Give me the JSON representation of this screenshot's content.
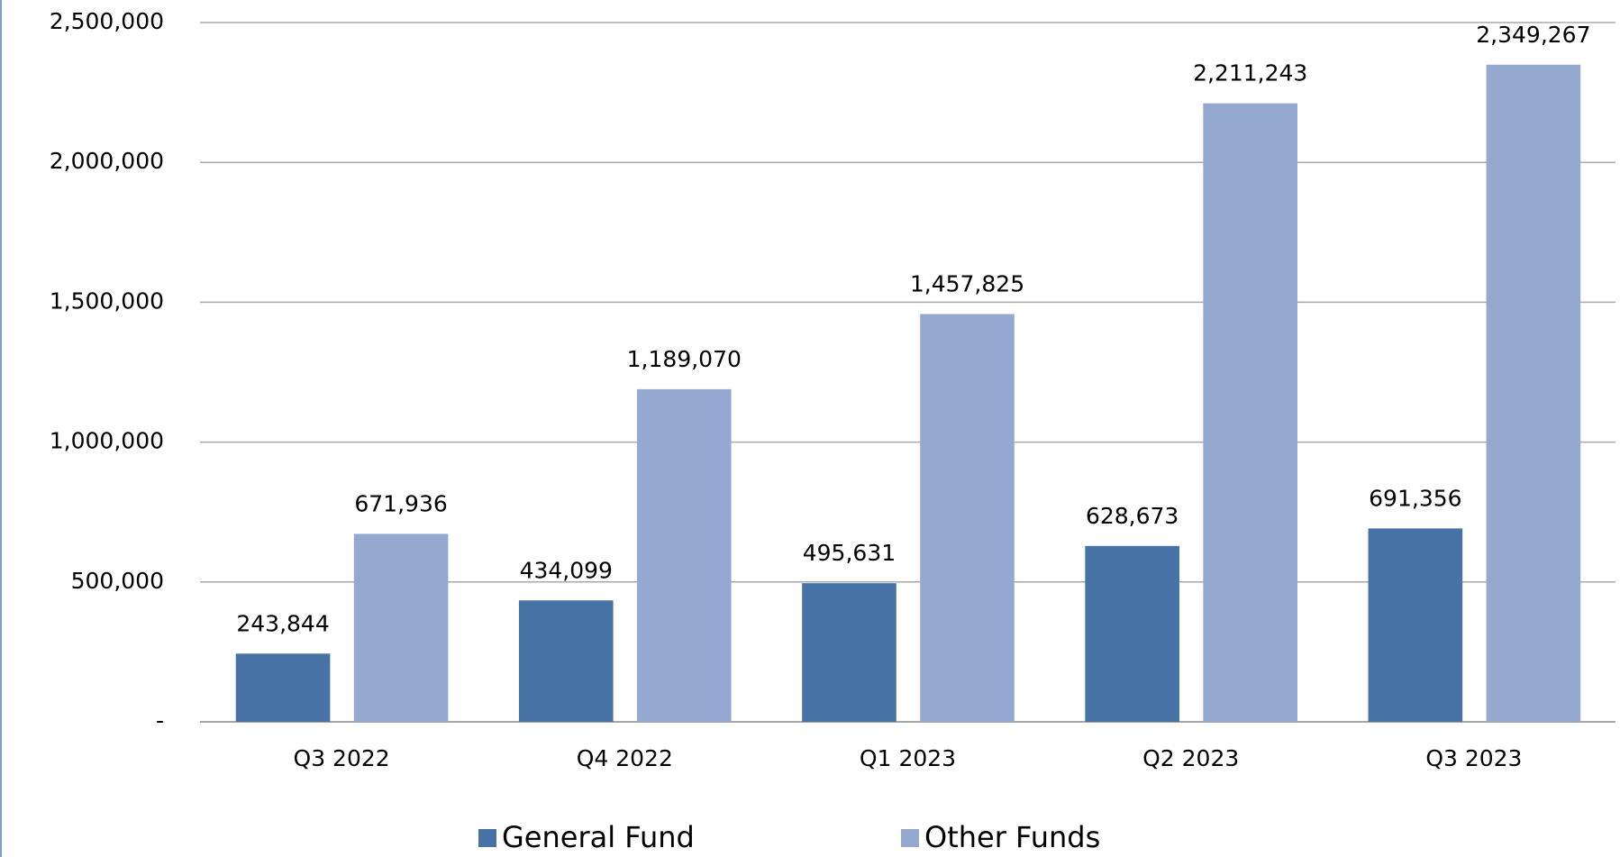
{
  "chart_data": {
    "type": "bar",
    "categories": [
      "Q3 2022",
      "Q4 2022",
      "Q1 2023",
      "Q2 2023",
      "Q3 2023"
    ],
    "series": [
      {
        "name": "General Fund",
        "color": "#4672a6",
        "values": [
          243844,
          434099,
          495631,
          628673,
          691356
        ],
        "value_labels": [
          "243,844",
          "434,099",
          "495,631",
          "628,673",
          "691,356"
        ]
      },
      {
        "name": "Other Funds",
        "color": "#95a9d0",
        "values": [
          671936,
          1189070,
          1457825,
          2211243,
          2349267
        ],
        "value_labels": [
          "671,936",
          "1,189,070",
          "1,457,825",
          "2,211,243",
          "2,349,267"
        ]
      }
    ],
    "ylim": [
      0,
      2500000
    ],
    "yticks": [
      {
        "value": 0,
        "label": "-"
      },
      {
        "value": 500000,
        "label": "500,000"
      },
      {
        "value": 1000000,
        "label": "1,000,000"
      },
      {
        "value": 1500000,
        "label": "1,500,000"
      },
      {
        "value": 2000000,
        "label": "2,000,000"
      },
      {
        "value": 2500000,
        "label": "2,500,000"
      }
    ],
    "grid": true,
    "legend": "bottom"
  }
}
